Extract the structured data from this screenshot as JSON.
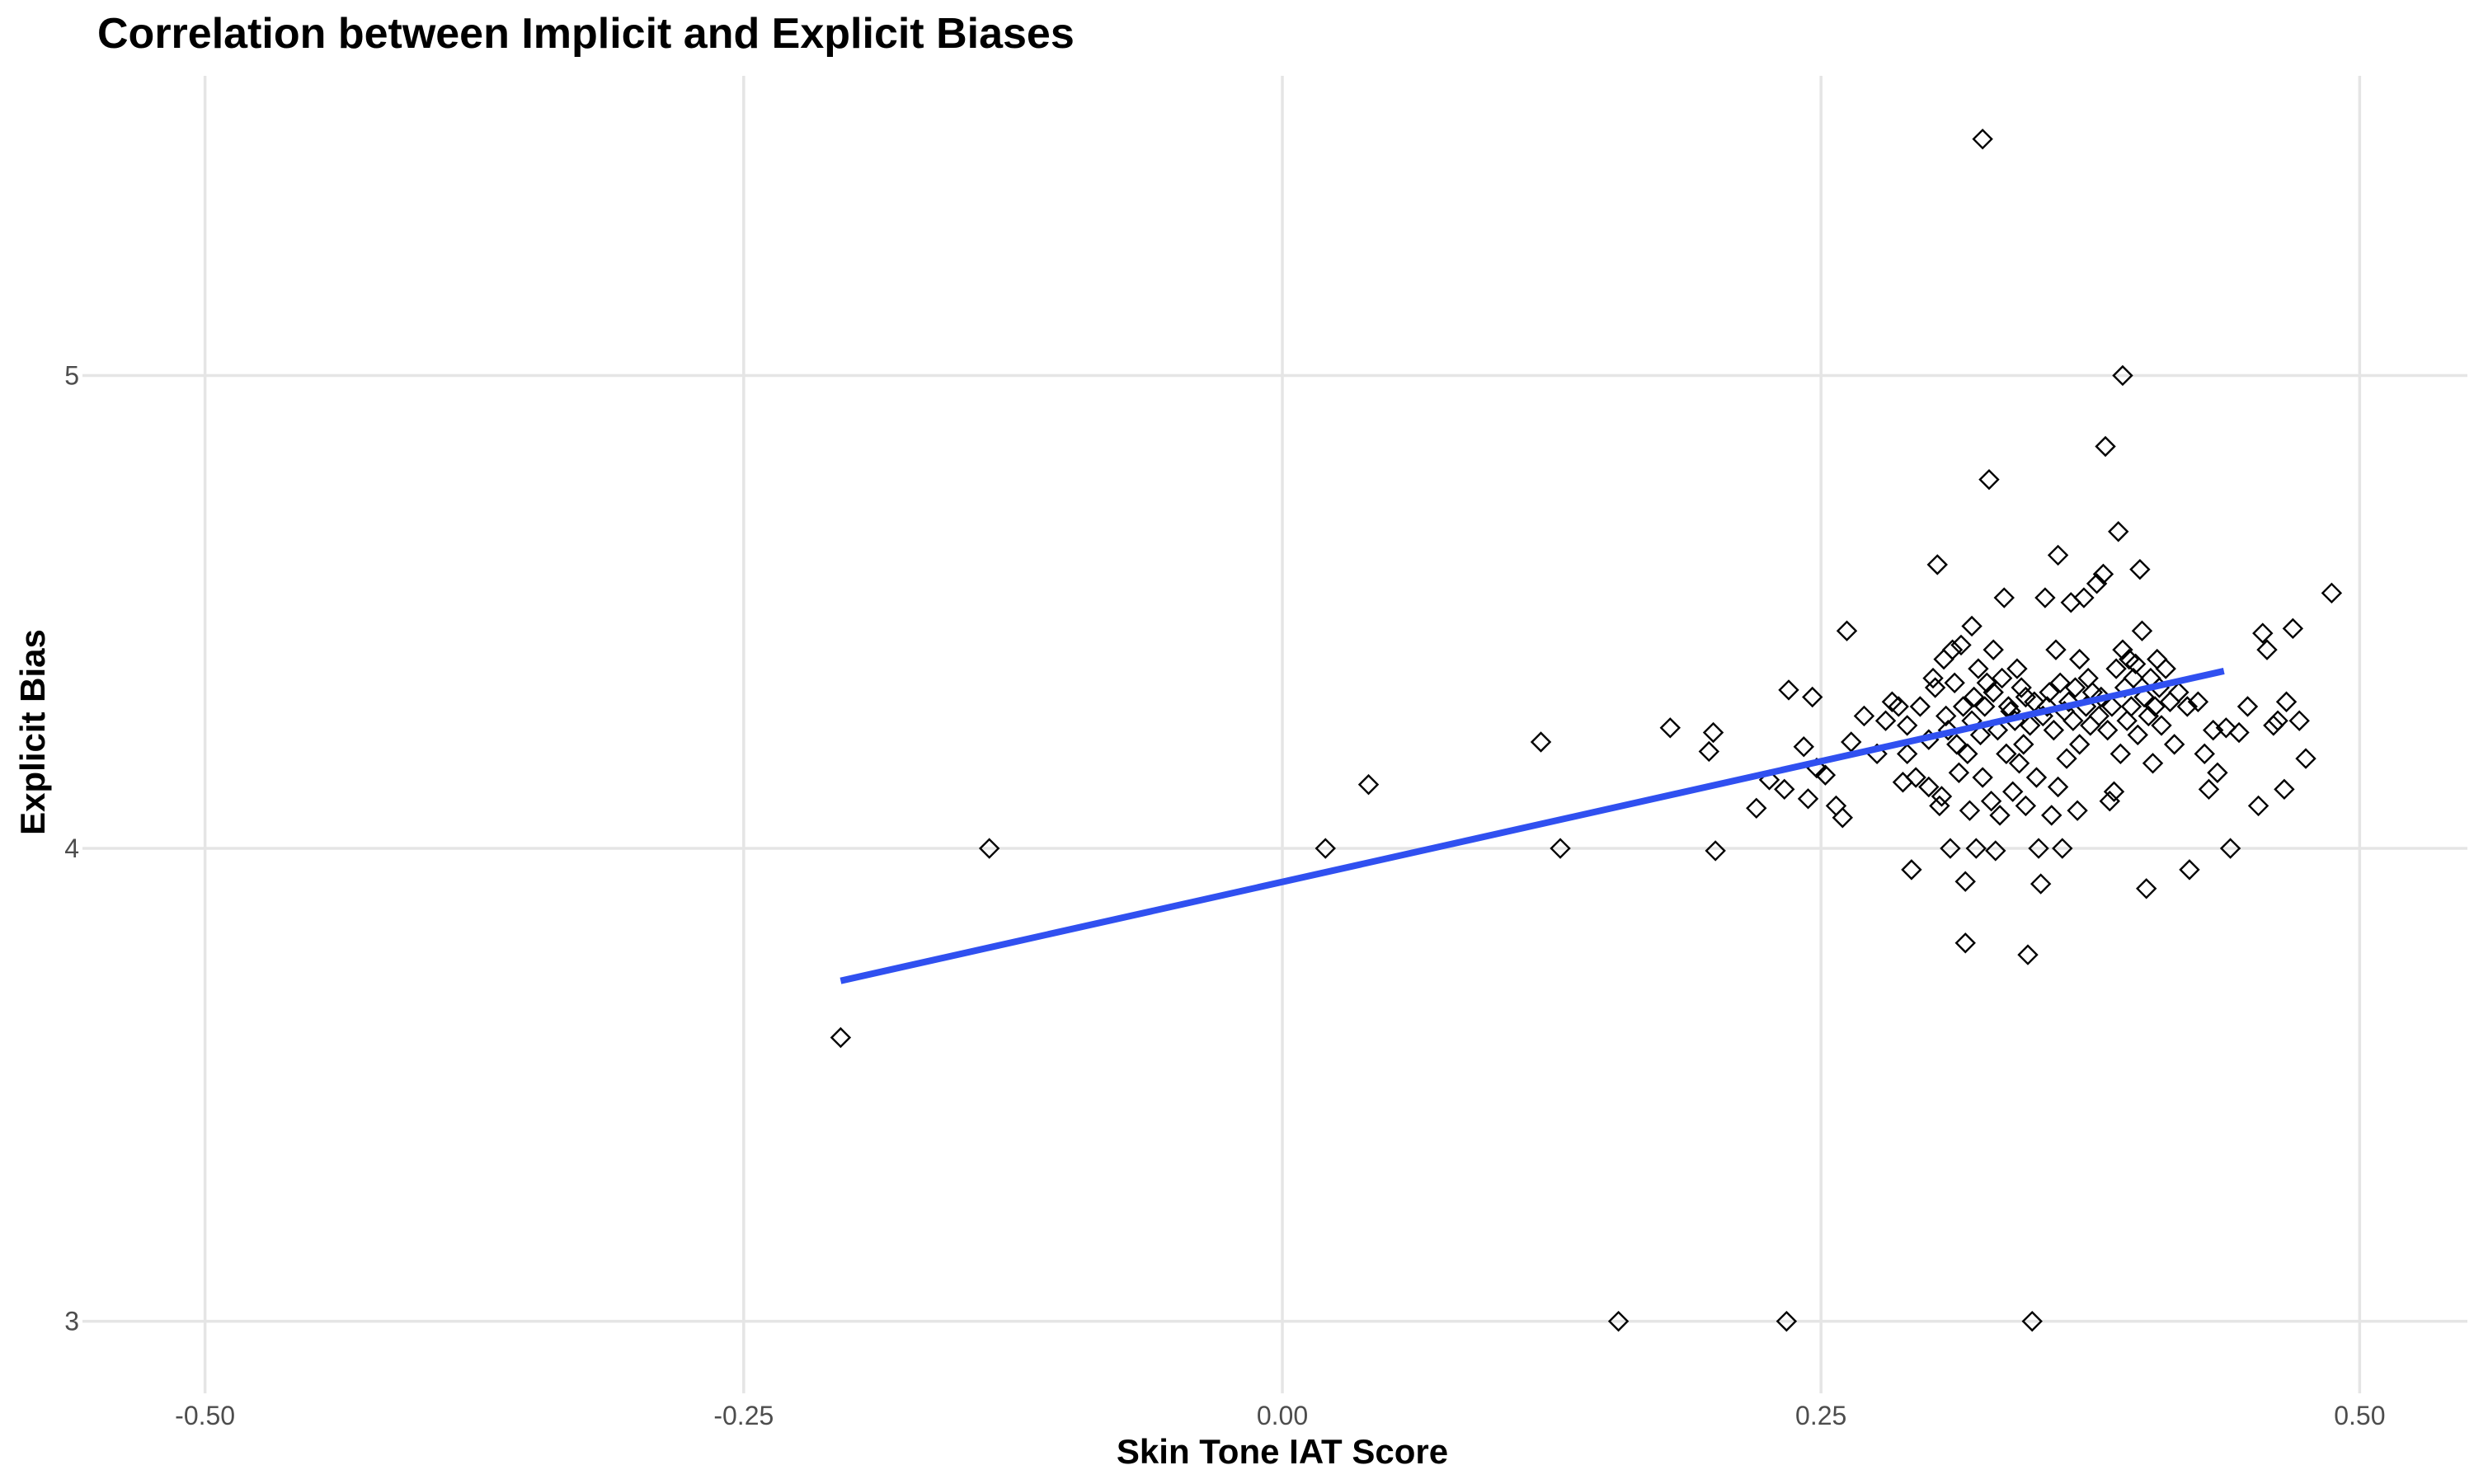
{
  "chart_data": {
    "type": "scatter",
    "title": "Correlation between Implicit and Explicit Biases",
    "xlabel": "Skin Tone IAT Score",
    "ylabel": "Explicit Bias",
    "xlim": [
      -0.55,
      0.55
    ],
    "ylim": [
      2.9,
      5.55
    ],
    "x_ticks": [
      -0.5,
      -0.25,
      0.0,
      0.25,
      0.5
    ],
    "x_tick_labels": [
      "-0.50",
      "-0.25",
      "0.00",
      "0.25",
      "0.50"
    ],
    "y_ticks": [
      3,
      4,
      5
    ],
    "y_tick_labels": [
      "3",
      "4",
      "5"
    ],
    "grid": true,
    "marker": "open-diamond",
    "colors": {
      "points": "#000000",
      "fit_line": "#3050f0",
      "grid": "#e5e5e5"
    },
    "fit_line": {
      "x": [
        -0.205,
        0.437
      ],
      "y": [
        3.72,
        4.375
      ]
    },
    "points": [
      [
        -0.205,
        3.6
      ],
      [
        -0.136,
        4.0
      ],
      [
        0.02,
        4.0
      ],
      [
        0.04,
        4.135
      ],
      [
        0.12,
        4.225
      ],
      [
        0.129,
        4.0
      ],
      [
        0.156,
        3.0
      ],
      [
        0.18,
        4.255
      ],
      [
        0.198,
        4.205
      ],
      [
        0.2,
        4.245
      ],
      [
        0.201,
        3.995
      ],
      [
        0.22,
        4.085
      ],
      [
        0.226,
        4.145
      ],
      [
        0.233,
        4.125
      ],
      [
        0.235,
        4.335
      ],
      [
        0.234,
        3.0
      ],
      [
        0.242,
        4.215
      ],
      [
        0.244,
        4.105
      ],
      [
        0.246,
        4.32
      ],
      [
        0.248,
        4.17
      ],
      [
        0.252,
        4.155
      ],
      [
        0.257,
        4.09
      ],
      [
        0.26,
        4.065
      ],
      [
        0.262,
        4.46
      ],
      [
        0.264,
        4.225
      ],
      [
        0.27,
        4.28
      ],
      [
        0.276,
        4.2
      ],
      [
        0.28,
        4.27
      ],
      [
        0.283,
        4.31
      ],
      [
        0.286,
        4.3
      ],
      [
        0.288,
        4.14
      ],
      [
        0.29,
        4.26
      ],
      [
        0.29,
        4.2
      ],
      [
        0.292,
        3.955
      ],
      [
        0.294,
        4.15
      ],
      [
        0.296,
        4.3
      ],
      [
        0.3,
        4.23
      ],
      [
        0.3,
        4.13
      ],
      [
        0.302,
        4.36
      ],
      [
        0.303,
        4.34
      ],
      [
        0.304,
        4.6
      ],
      [
        0.305,
        4.09
      ],
      [
        0.306,
        4.11
      ],
      [
        0.307,
        4.4
      ],
      [
        0.308,
        4.28
      ],
      [
        0.309,
        4.25
      ],
      [
        0.31,
        4.0
      ],
      [
        0.311,
        4.42
      ],
      [
        0.312,
        4.35
      ],
      [
        0.313,
        4.22
      ],
      [
        0.314,
        4.16
      ],
      [
        0.315,
        4.43
      ],
      [
        0.316,
        4.3
      ],
      [
        0.317,
        3.93
      ],
      [
        0.317,
        3.8
      ],
      [
        0.318,
        4.2
      ],
      [
        0.319,
        4.08
      ],
      [
        0.32,
        4.47
      ],
      [
        0.32,
        4.27
      ],
      [
        0.321,
        4.32
      ],
      [
        0.322,
        4.0
      ],
      [
        0.323,
        4.38
      ],
      [
        0.324,
        4.24
      ],
      [
        0.325,
        5.5
      ],
      [
        0.325,
        4.15
      ],
      [
        0.326,
        4.3
      ],
      [
        0.327,
        4.35
      ],
      [
        0.328,
        4.78
      ],
      [
        0.329,
        4.1
      ],
      [
        0.33,
        4.42
      ],
      [
        0.33,
        4.33
      ],
      [
        0.331,
        3.995
      ],
      [
        0.332,
        4.25
      ],
      [
        0.333,
        4.07
      ],
      [
        0.334,
        4.36
      ],
      [
        0.335,
        4.53
      ],
      [
        0.336,
        4.2
      ],
      [
        0.337,
        4.3
      ],
      [
        0.338,
        4.29
      ],
      [
        0.339,
        4.12
      ],
      [
        0.34,
        4.27
      ],
      [
        0.341,
        4.38
      ],
      [
        0.342,
        4.18
      ],
      [
        0.343,
        4.34
      ],
      [
        0.344,
        4.22
      ],
      [
        0.345,
        4.09
      ],
      [
        0.345,
        4.32
      ],
      [
        0.346,
        3.775
      ],
      [
        0.347,
        4.26
      ],
      [
        0.348,
        3.0
      ],
      [
        0.349,
        4.31
      ],
      [
        0.35,
        4.15
      ],
      [
        0.351,
        4.0
      ],
      [
        0.352,
        3.925
      ],
      [
        0.353,
        4.28
      ],
      [
        0.354,
        4.53
      ],
      [
        0.355,
        4.3
      ],
      [
        0.356,
        4.33
      ],
      [
        0.357,
        4.07
      ],
      [
        0.358,
        4.25
      ],
      [
        0.359,
        4.42
      ],
      [
        0.36,
        4.62
      ],
      [
        0.36,
        4.13
      ],
      [
        0.361,
        4.35
      ],
      [
        0.362,
        4.0
      ],
      [
        0.363,
        4.29
      ],
      [
        0.364,
        4.19
      ],
      [
        0.365,
        4.31
      ],
      [
        0.366,
        4.52
      ],
      [
        0.367,
        4.27
      ],
      [
        0.368,
        4.34
      ],
      [
        0.369,
        4.08
      ],
      [
        0.37,
        4.4
      ],
      [
        0.37,
        4.22
      ],
      [
        0.372,
        4.53
      ],
      [
        0.373,
        4.3
      ],
      [
        0.374,
        4.36
      ],
      [
        0.375,
        4.26
      ],
      [
        0.376,
        4.33
      ],
      [
        0.378,
        4.56
      ],
      [
        0.379,
        4.28
      ],
      [
        0.38,
        4.32
      ],
      [
        0.381,
        4.58
      ],
      [
        0.382,
        4.85
      ],
      [
        0.383,
        4.25
      ],
      [
        0.384,
        4.1
      ],
      [
        0.385,
        4.3
      ],
      [
        0.386,
        4.12
      ],
      [
        0.387,
        4.38
      ],
      [
        0.388,
        4.67
      ],
      [
        0.389,
        4.2
      ],
      [
        0.39,
        5.0
      ],
      [
        0.39,
        4.42
      ],
      [
        0.391,
        4.34
      ],
      [
        0.392,
        4.27
      ],
      [
        0.393,
        4.4
      ],
      [
        0.394,
        4.3
      ],
      [
        0.395,
        4.36
      ],
      [
        0.396,
        4.39
      ],
      [
        0.397,
        4.24
      ],
      [
        0.398,
        4.59
      ],
      [
        0.399,
        4.46
      ],
      [
        0.4,
        4.32
      ],
      [
        0.401,
        3.915
      ],
      [
        0.402,
        4.28
      ],
      [
        0.403,
        4.36
      ],
      [
        0.404,
        4.18
      ],
      [
        0.405,
        4.3
      ],
      [
        0.406,
        4.4
      ],
      [
        0.407,
        4.34
      ],
      [
        0.408,
        4.26
      ],
      [
        0.41,
        4.38
      ],
      [
        0.412,
        4.31
      ],
      [
        0.414,
        4.22
      ],
      [
        0.416,
        4.33
      ],
      [
        0.42,
        4.3
      ],
      [
        0.421,
        3.955
      ],
      [
        0.425,
        4.31
      ],
      [
        0.428,
        4.2
      ],
      [
        0.43,
        4.125
      ],
      [
        0.432,
        4.25
      ],
      [
        0.434,
        4.16
      ],
      [
        0.438,
        4.255
      ],
      [
        0.44,
        4.0
      ],
      [
        0.444,
        4.245
      ],
      [
        0.448,
        4.3
      ],
      [
        0.453,
        4.09
      ],
      [
        0.455,
        4.455
      ],
      [
        0.457,
        4.42
      ],
      [
        0.46,
        4.26
      ],
      [
        0.462,
        4.27
      ],
      [
        0.465,
        4.125
      ],
      [
        0.466,
        4.31
      ],
      [
        0.469,
        4.465
      ],
      [
        0.472,
        4.27
      ],
      [
        0.475,
        4.19
      ],
      [
        0.487,
        4.54
      ]
    ]
  }
}
